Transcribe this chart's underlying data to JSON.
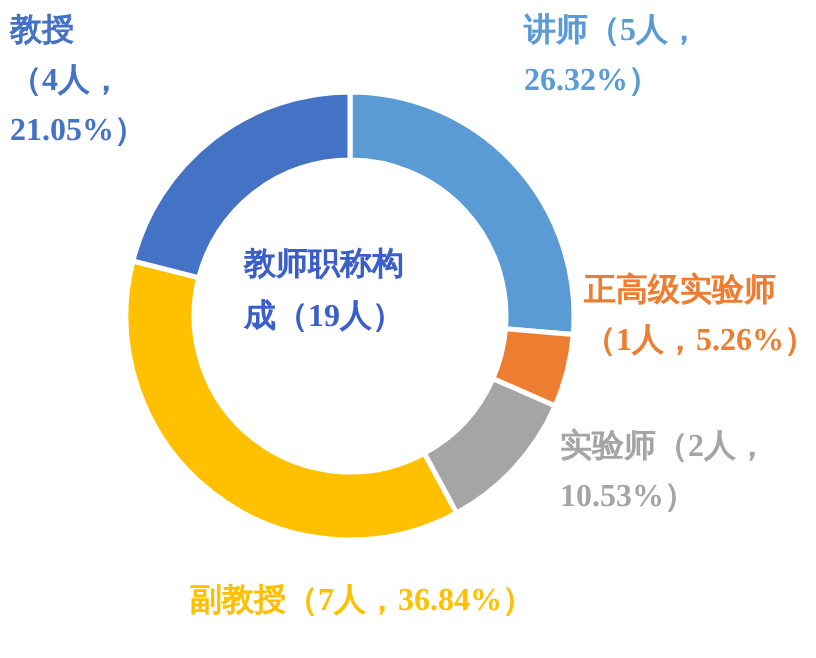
{
  "chart_data": {
    "type": "donut",
    "title": "教师职称构成（19人）",
    "categories": [
      "讲师",
      "正高级实验师",
      "实验师",
      "副教授",
      "教授"
    ],
    "values": [
      5,
      1,
      2,
      7,
      4
    ],
    "colors": [
      "#5b9bd5",
      "#ed7d31",
      "#a5a5a5",
      "#ffc000",
      "#4472c4"
    ],
    "value_labels": [
      "（5人，26.32%）",
      "（1人，5.26%）",
      "（2人，10.53%）",
      "（7人，36.84%）",
      "（4人，21.05%）"
    ]
  }
}
